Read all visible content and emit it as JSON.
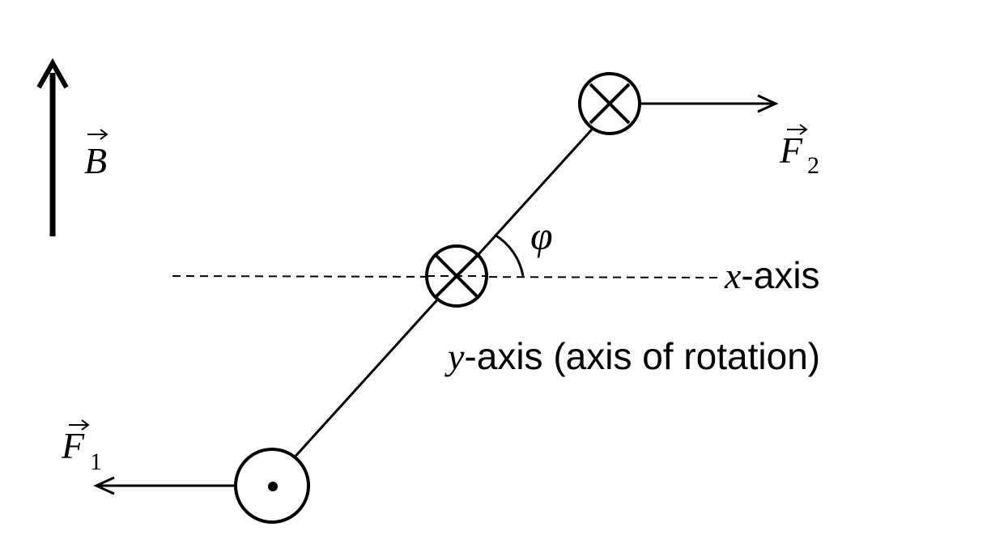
{
  "labels": {
    "field": "B",
    "force1_main": "F",
    "force1_sub": "1",
    "force2_main": "F",
    "force2_sub": "2",
    "angle": "φ",
    "x_axis_var": "x",
    "x_axis_text": "-axis",
    "y_axis_var": "y",
    "y_axis_text": "-axis (axis of rotation)"
  },
  "symbols": {
    "top_conductor": "current-into-page-icon",
    "center_conductor": "current-into-page-icon",
    "bottom_conductor": "current-out-of-page-icon"
  },
  "colors": {
    "ink": "#000000",
    "background": "#ffffff"
  }
}
